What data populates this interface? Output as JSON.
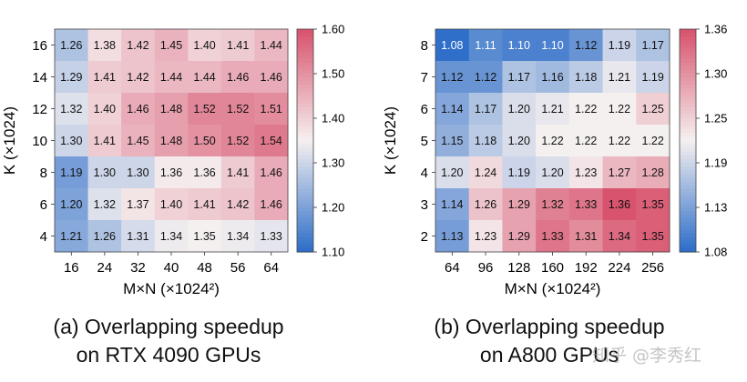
{
  "chart_data": [
    {
      "type": "heatmap",
      "title": "",
      "caption_line1": "(a) Overlapping speedup",
      "caption_line2": "on RTX 4090 GPUs",
      "xlabel": "M×N (×1024²)",
      "ylabel": "K (×1024)",
      "x": [
        "16",
        "24",
        "32",
        "40",
        "48",
        "56",
        "64"
      ],
      "y": [
        "16",
        "14",
        "12",
        "10",
        "8",
        "6",
        "4"
      ],
      "values": [
        [
          1.26,
          1.38,
          1.42,
          1.45,
          1.4,
          1.41,
          1.44
        ],
        [
          1.29,
          1.41,
          1.42,
          1.44,
          1.44,
          1.46,
          1.46
        ],
        [
          1.32,
          1.4,
          1.46,
          1.48,
          1.52,
          1.52,
          1.51
        ],
        [
          1.3,
          1.41,
          1.45,
          1.48,
          1.5,
          1.52,
          1.54
        ],
        [
          1.19,
          1.3,
          1.3,
          1.36,
          1.36,
          1.41,
          1.46
        ],
        [
          1.2,
          1.32,
          1.37,
          1.4,
          1.41,
          1.42,
          1.46
        ],
        [
          1.21,
          1.26,
          1.31,
          1.34,
          1.35,
          1.34,
          1.33
        ]
      ],
      "colorbar": {
        "range": [
          1.1,
          1.6
        ],
        "ticks": [
          "1.60",
          "1.50",
          "1.40",
          "1.30",
          "1.20",
          "1.10"
        ],
        "cmap": "coolwarm-like (blue low, white mid, red high)",
        "low_color": "#2f6fc9",
        "mid_color": "#f5f0f0",
        "high_color": "#d8546e"
      }
    },
    {
      "type": "heatmap",
      "title": "",
      "caption_line1": "(b) Overlapping speedup",
      "caption_line2": "on A800 GPUs",
      "xlabel": "M×N (×1024²)",
      "ylabel": "K (×1024)",
      "x": [
        "64",
        "96",
        "128",
        "160",
        "192",
        "224",
        "256"
      ],
      "y": [
        "8",
        "7",
        "6",
        "5",
        "4",
        "3",
        "2"
      ],
      "values": [
        [
          1.08,
          1.11,
          1.1,
          1.1,
          1.12,
          1.19,
          1.17
        ],
        [
          1.12,
          1.12,
          1.17,
          1.16,
          1.18,
          1.21,
          1.19
        ],
        [
          1.14,
          1.17,
          1.2,
          1.21,
          1.22,
          1.22,
          1.25
        ],
        [
          1.15,
          1.18,
          1.2,
          1.22,
          1.22,
          1.22,
          1.22
        ],
        [
          1.2,
          1.24,
          1.19,
          1.2,
          1.23,
          1.27,
          1.28
        ],
        [
          1.14,
          1.26,
          1.29,
          1.32,
          1.33,
          1.36,
          1.35
        ],
        [
          1.13,
          1.23,
          1.29,
          1.33,
          1.31,
          1.34,
          1.35
        ]
      ],
      "colorbar": {
        "range": [
          1.08,
          1.36
        ],
        "ticks": [
          "1.36",
          "1.30",
          "1.25",
          "1.19",
          "1.13",
          "1.08"
        ],
        "cmap": "coolwarm-like (blue low, white mid, red high)",
        "low_color": "#2f6fc9",
        "mid_color": "#f5f0f0",
        "high_color": "#d8546e"
      }
    }
  ],
  "watermark": "知乎 @李秀红"
}
